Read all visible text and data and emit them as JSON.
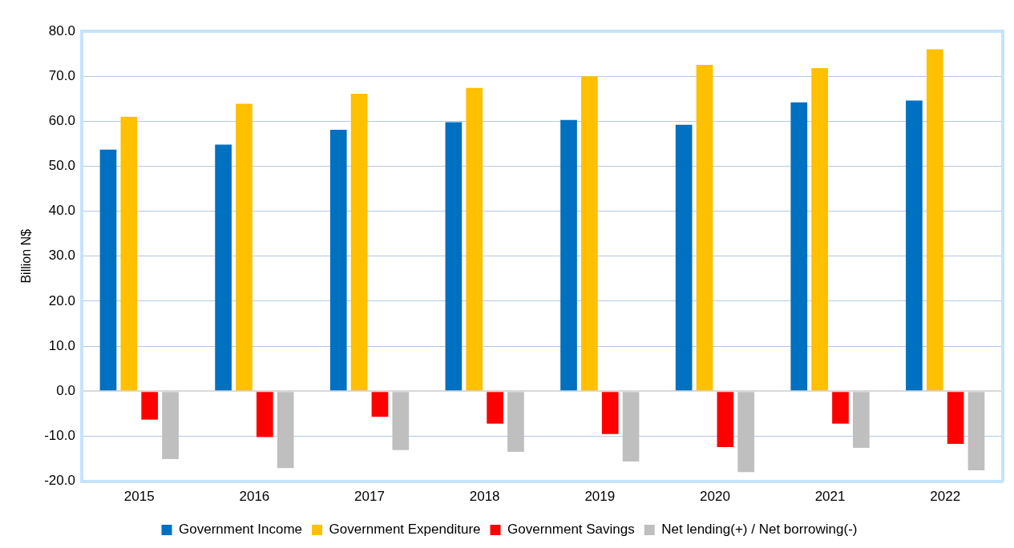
{
  "chart_data": {
    "type": "bar",
    "ylabel": "Billion N$",
    "categories": [
      "2015",
      "2016",
      "2017",
      "2018",
      "2019",
      "2020",
      "2021",
      "2022"
    ],
    "series": [
      {
        "name": "Government Income",
        "color": "#0070c0",
        "values": [
          53.7,
          54.8,
          58.1,
          59.8,
          60.3,
          59.2,
          64.2,
          64.6
        ]
      },
      {
        "name": "Government Expenditure",
        "color": "#ffc000",
        "values": [
          61.0,
          63.9,
          66.1,
          67.4,
          70.0,
          72.5,
          71.8,
          76.0
        ]
      },
      {
        "name": "Government Savings",
        "color": "#ff0000",
        "values": [
          -6.3,
          -10.2,
          -5.7,
          -7.2,
          -9.5,
          -12.4,
          -7.2,
          -11.7
        ]
      },
      {
        "name": "Net lending(+) / Net borrowing(-)",
        "color": "#bfbfbf",
        "values": [
          -15.1,
          -17.1,
          -13.1,
          -13.5,
          -15.6,
          -18.0,
          -12.6,
          -17.6
        ]
      }
    ],
    "ylim": [
      -20,
      80
    ],
    "yticks": [
      {
        "value": -20,
        "label": "-20.0"
      },
      {
        "value": -10,
        "label": "-10.0"
      },
      {
        "value": 0,
        "label": "0.0"
      },
      {
        "value": 10,
        "label": "10.0"
      },
      {
        "value": 20,
        "label": "20.0"
      },
      {
        "value": 30,
        "label": "30.0"
      },
      {
        "value": 40,
        "label": "40.0"
      },
      {
        "value": 50,
        "label": "50.0"
      },
      {
        "value": 60,
        "label": "60.0"
      },
      {
        "value": 70,
        "label": "70.0"
      },
      {
        "value": 80,
        "label": "80.0"
      }
    ],
    "grid": "y",
    "legend": "bottom"
  }
}
